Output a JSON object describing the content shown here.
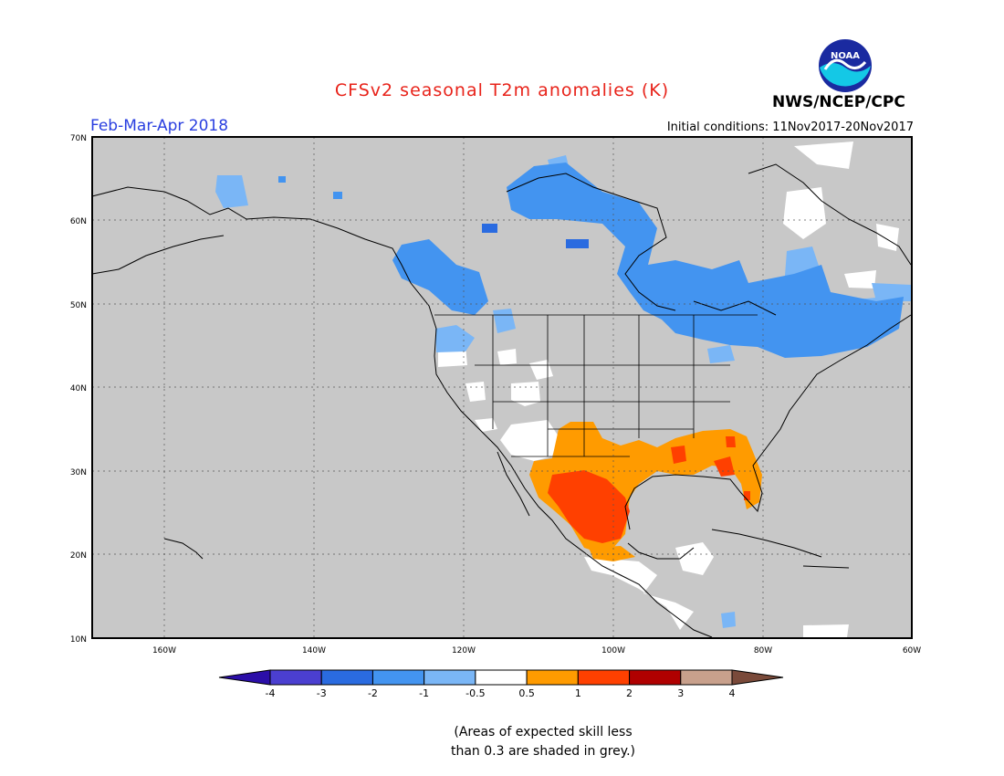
{
  "header": {
    "title": "CFSv2 seasonal T2m anomalies (K)",
    "period": "Feb-Mar-Apr 2018",
    "initial_conditions": "Initial conditions: 11Nov2017-20Nov2017",
    "agency": "NWS/NCEP/CPC",
    "logo_text": "NOAA"
  },
  "map": {
    "lat_labels": [
      "70N",
      "60N",
      "50N",
      "40N",
      "30N",
      "20N",
      "10N"
    ],
    "lon_labels": [
      "160W",
      "140W",
      "120W",
      "100W",
      "80W",
      "60W"
    ],
    "background_color": "#c8c8c8"
  },
  "colorbar": {
    "labels": [
      "-4",
      "-3",
      "-2",
      "-1",
      "-0.5",
      "0.5",
      "1",
      "2",
      "3",
      "4"
    ],
    "colors": [
      "#2b0ea8",
      "#4b3fd0",
      "#2a6be0",
      "#4394f0",
      "#7ab6f6",
      "#ffffff",
      "#ff9b00",
      "#ff4000",
      "#b00000",
      "#c8a08c",
      "#7a4a3a"
    ]
  },
  "footnote": {
    "line1": "(Areas of expected skill less",
    "line2": "than 0.3 are shaded in grey.)"
  }
}
